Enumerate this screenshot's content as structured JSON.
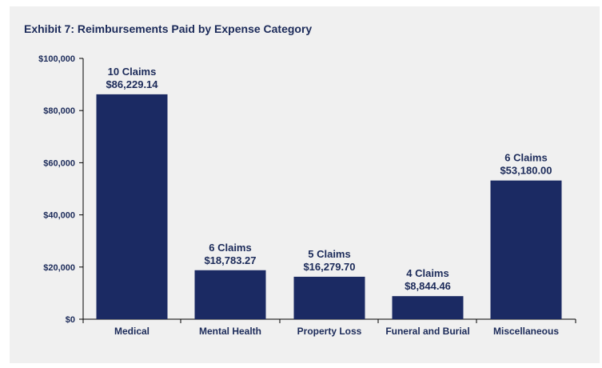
{
  "chart_data": {
    "type": "bar",
    "title": "Exhibit 7: Reimbursements Paid by Expense Category",
    "xlabel": "",
    "ylabel": "",
    "categories": [
      "Medical",
      "Mental Health",
      "Property Loss",
      "Funeral and Burial",
      "Miscellaneous"
    ],
    "values": [
      86229.14,
      18783.27,
      16279.7,
      8844.46,
      53180.0
    ],
    "claims_labels": [
      "10 Claims",
      "6 Claims",
      "5 Claims",
      "4 Claims",
      "6 Claims"
    ],
    "value_labels": [
      "$86,229.14",
      "$18,783.27",
      "$16,279.70",
      "$8,844.46",
      "$53,180.00"
    ],
    "ylim": [
      0,
      100000
    ],
    "yticks": [
      0,
      20000,
      40000,
      60000,
      80000,
      100000
    ],
    "ytick_labels": [
      "$0",
      "$20,000",
      "$40,000",
      "$60,000",
      "$80,000",
      "$100,000"
    ],
    "grid": false,
    "bar_color": "#1b2a63",
    "text_color": "#1b2a59",
    "background_color": "#f0f0f0"
  }
}
